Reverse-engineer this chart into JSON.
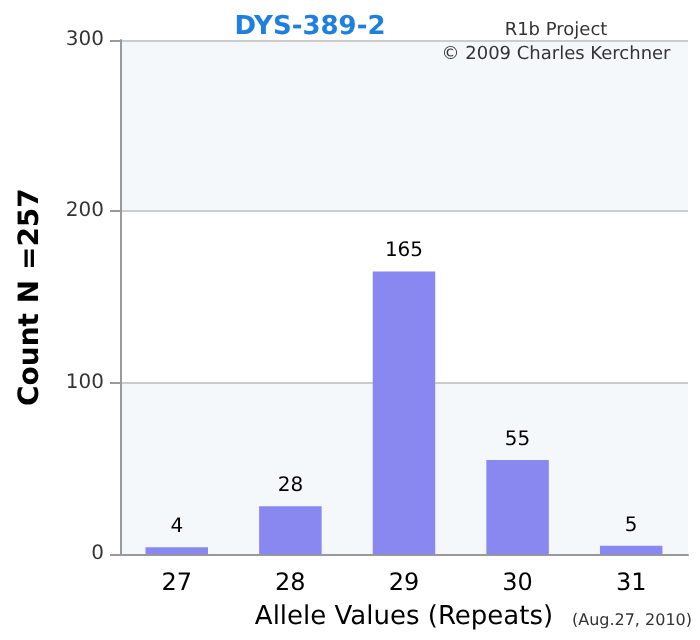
{
  "chart_data": {
    "type": "bar",
    "title": "DYS-389-2",
    "xlabel": "Allele Values (Repeats)",
    "ylabel": "Count N =257",
    "categories": [
      "27",
      "28",
      "29",
      "30",
      "31"
    ],
    "values": [
      4,
      28,
      165,
      55,
      5
    ],
    "color": "#8888f0",
    "ylim": [
      0,
      300
    ],
    "yticks": [
      0,
      100,
      200,
      300
    ],
    "grid": "y",
    "data_labels": true,
    "annotations": [
      "R1b Project",
      "© 2009 Charles Kerchner",
      "(Aug.27, 2010)"
    ]
  }
}
